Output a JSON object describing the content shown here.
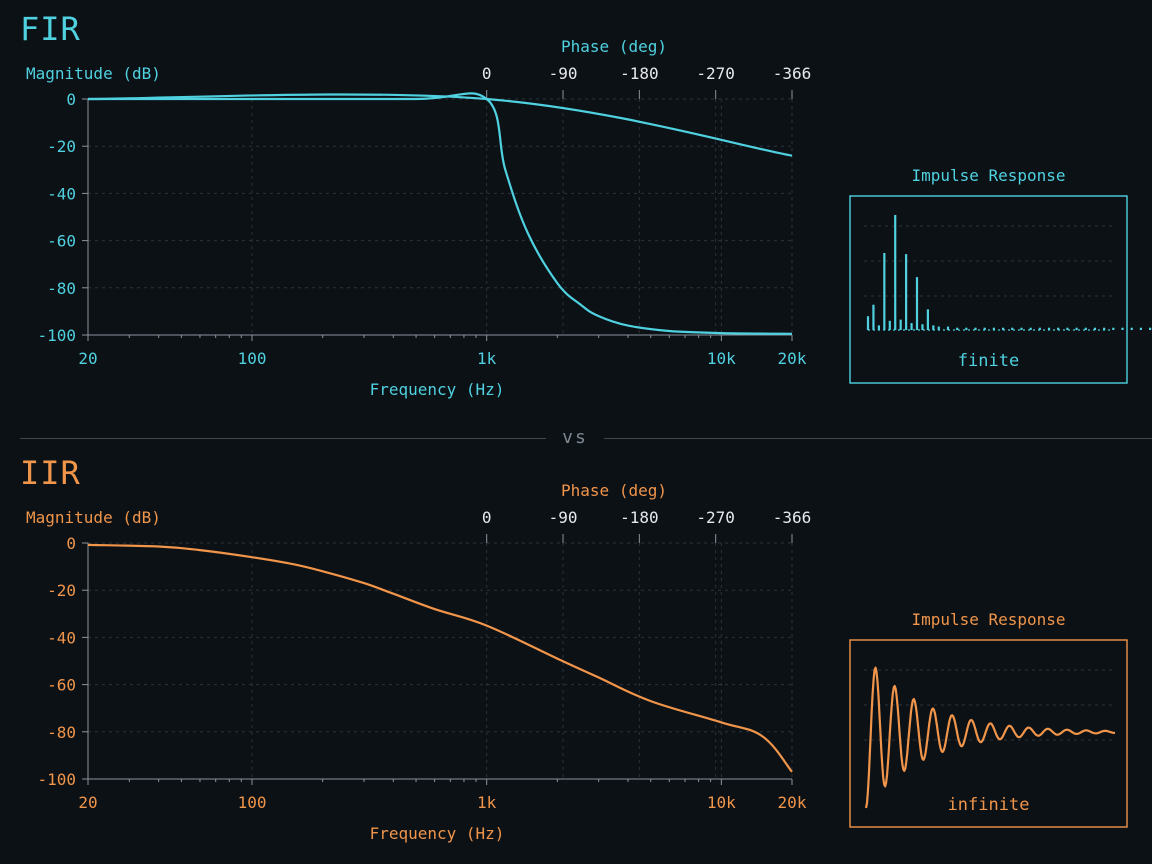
{
  "chart_data": [
    {
      "id": "fir",
      "type": "line",
      "title": "FIR",
      "color": "#4fd1e0",
      "xlabel": "Frequency (Hz)",
      "ylabel": "Magnitude (dB)",
      "x_scale": "log",
      "xlim": [
        20,
        20000
      ],
      "ylim": [
        -100,
        0
      ],
      "x_ticks": [
        {
          "value": 20,
          "label": "20"
        },
        {
          "value": 100,
          "label": "100"
        },
        {
          "value": 1000,
          "label": "1k"
        },
        {
          "value": 10000,
          "label": "10k"
        },
        {
          "value": 20000,
          "label": "20k"
        }
      ],
      "y_ticks": [
        {
          "value": 0,
          "label": "0"
        },
        {
          "value": -20,
          "label": "-20"
        },
        {
          "value": -40,
          "label": "-40"
        },
        {
          "value": -60,
          "label": "-60"
        },
        {
          "value": -80,
          "label": "-80"
        },
        {
          "value": -100,
          "label": "-100"
        }
      ],
      "phase_axis": {
        "label": "Phase (deg)",
        "ticks": [
          "0",
          "-90",
          "-180",
          "-270",
          "-366"
        ],
        "range": [
          0,
          -366
        ]
      },
      "grid": true,
      "series": [
        {
          "axis": "magnitude",
          "x": [
            20,
            100,
            500,
            1000,
            1200,
            1500,
            2000,
            2500,
            3000,
            4000,
            6000,
            10000,
            20000
          ],
          "y": [
            0,
            0,
            0,
            0,
            -30,
            -57,
            -78,
            -87,
            -92,
            -96,
            -98.3,
            -99.2,
            -99.5
          ]
        },
        {
          "axis": "phase",
          "x": [
            20,
            1000,
            20000
          ],
          "y": [
            0,
            0,
            -88
          ]
        }
      ],
      "impulse": {
        "title": "Impulse Response",
        "caption": "finite",
        "values": [
          0.12,
          0.22,
          0.04,
          0.67,
          0.08,
          1.0,
          0.09,
          0.66,
          0.06,
          0.46,
          0.05,
          0.18,
          0.04,
          0.03,
          0.03,
          0.02,
          0.02,
          0.02,
          0.02,
          0.02,
          0.02,
          0.02,
          0.02,
          0.02,
          0.02,
          0.02,
          0.02,
          0.02,
          0.02,
          0.02,
          0.02,
          0.02,
          0.02,
          0.02,
          0.02,
          0.02,
          0.02
        ]
      }
    },
    {
      "id": "iir",
      "type": "line",
      "title": "IIR",
      "color": "#f0954a",
      "xlabel": "Frequency (Hz)",
      "ylabel": "Magnitude (dB)",
      "x_scale": "log",
      "xlim": [
        20,
        20000
      ],
      "ylim": [
        -100,
        0
      ],
      "x_ticks": [
        {
          "value": 20,
          "label": "20"
        },
        {
          "value": 100,
          "label": "100"
        },
        {
          "value": 1000,
          "label": "1k"
        },
        {
          "value": 10000,
          "label": "10k"
        },
        {
          "value": 20000,
          "label": "20k"
        }
      ],
      "y_ticks": [
        {
          "value": 0,
          "label": "0"
        },
        {
          "value": -20,
          "label": "-20"
        },
        {
          "value": -40,
          "label": "-40"
        },
        {
          "value": -60,
          "label": "-60"
        },
        {
          "value": -80,
          "label": "-80"
        },
        {
          "value": -100,
          "label": "-100"
        }
      ],
      "phase_axis": {
        "label": "Phase (deg)",
        "ticks": [
          "0",
          "-90",
          "-180",
          "-270",
          "-366"
        ],
        "range": [
          0,
          -366
        ]
      },
      "grid": true,
      "series": [
        {
          "axis": "magnitude",
          "x": [
            20,
            40,
            60,
            100,
            150,
            200,
            300,
            400,
            600,
            1000,
            2000,
            3000,
            5000,
            10000,
            15000,
            20000
          ],
          "y": [
            -0.8,
            -1.5,
            -3,
            -6,
            -9,
            -12,
            -17,
            -21.5,
            -28,
            -35,
            -49,
            -57,
            -67,
            -76,
            -82,
            -97
          ]
        }
      ],
      "impulse": {
        "title": "Impulse Response",
        "caption": "infinite",
        "decay": 0.93,
        "cycles": 13
      }
    }
  ],
  "divider": {
    "label": "vs"
  }
}
